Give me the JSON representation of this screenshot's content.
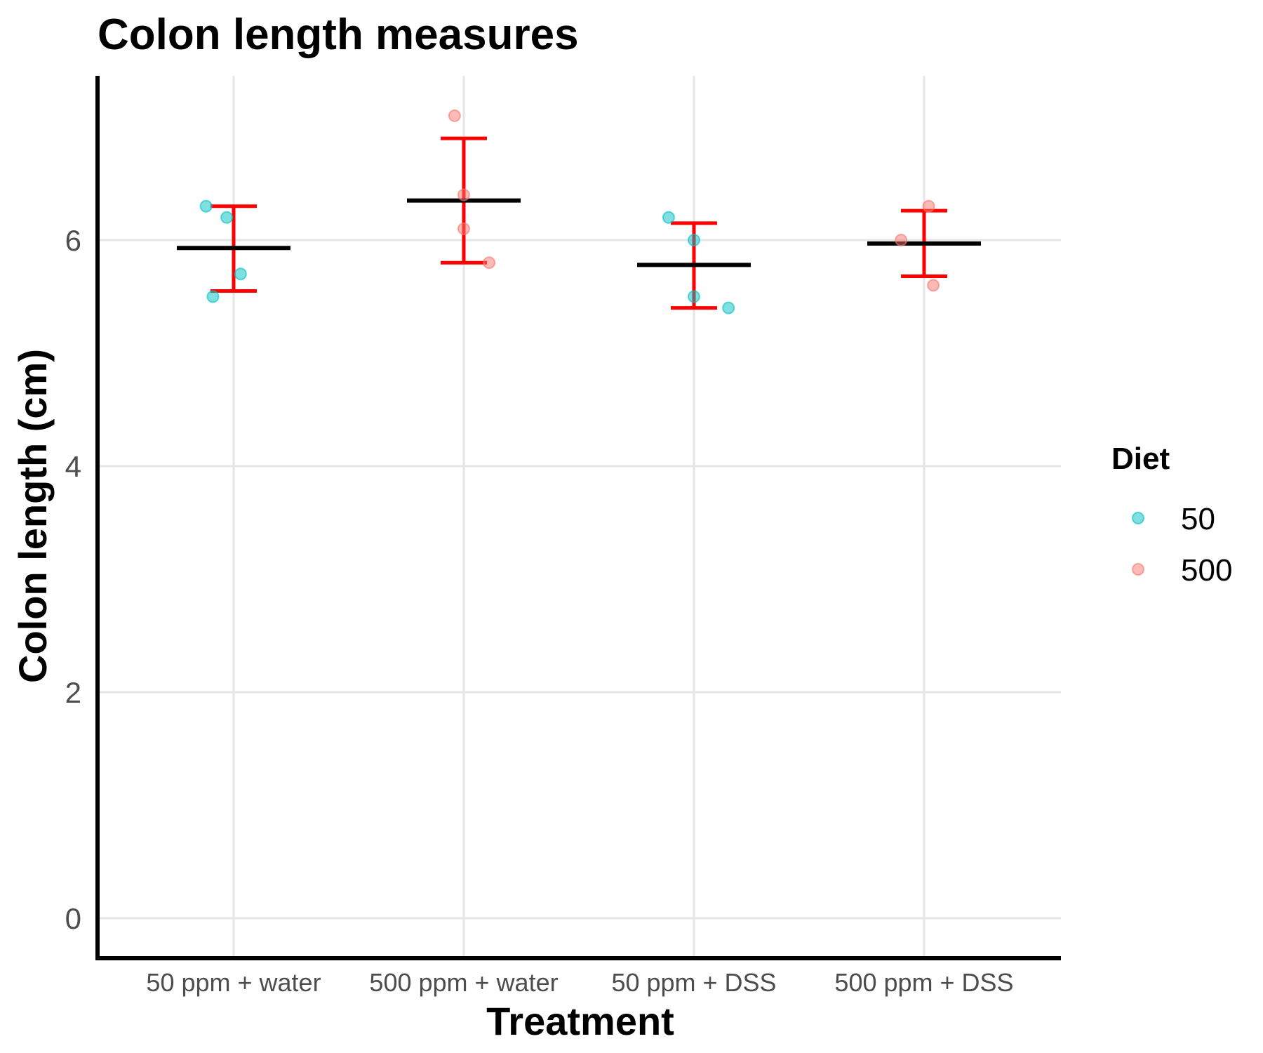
{
  "chart_data": {
    "type": "scatter",
    "title": "Colon length measures",
    "xlabel": "Treatment",
    "ylabel": "Colon length (cm)",
    "categories": [
      "50 ppm + water",
      "500 ppm + water",
      "50 ppm + DSS",
      "500 ppm + DSS"
    ],
    "ylim": [
      -0.35,
      7.4
    ],
    "yticks": [
      0,
      2,
      4,
      6
    ],
    "grid": true,
    "legend": {
      "title": "Diet",
      "placement": "right",
      "entries": [
        {
          "label": "50",
          "color": "#00BFC4"
        },
        {
          "label": "500",
          "color": "#F8766D"
        }
      ]
    },
    "points": [
      {
        "category": 0,
        "jitter": -0.12,
        "y": 6.3,
        "diet": "50"
      },
      {
        "category": 0,
        "jitter": -0.03,
        "y": 6.2,
        "diet": "50"
      },
      {
        "category": 0,
        "jitter": 0.03,
        "y": 5.7,
        "diet": "50"
      },
      {
        "category": 0,
        "jitter": -0.09,
        "y": 5.5,
        "diet": "50"
      },
      {
        "category": 1,
        "jitter": -0.04,
        "y": 7.1,
        "diet": "500"
      },
      {
        "category": 1,
        "jitter": 0.0,
        "y": 6.4,
        "diet": "500"
      },
      {
        "category": 1,
        "jitter": 0.0,
        "y": 6.1,
        "diet": "500"
      },
      {
        "category": 1,
        "jitter": 0.11,
        "y": 5.8,
        "diet": "500"
      },
      {
        "category": 2,
        "jitter": -0.11,
        "y": 6.2,
        "diet": "50"
      },
      {
        "category": 2,
        "jitter": 0.0,
        "y": 6.0,
        "diet": "50"
      },
      {
        "category": 2,
        "jitter": 0.0,
        "y": 5.5,
        "diet": "50"
      },
      {
        "category": 2,
        "jitter": 0.15,
        "y": 5.4,
        "diet": "50"
      },
      {
        "category": 3,
        "jitter": 0.02,
        "y": 6.3,
        "diet": "500"
      },
      {
        "category": 3,
        "jitter": -0.1,
        "y": 6.0,
        "diet": "500"
      },
      {
        "category": 3,
        "jitter": 0.04,
        "y": 5.6,
        "diet": "500"
      }
    ],
    "summary": [
      {
        "category": 0,
        "mean": 5.93,
        "lower": 5.55,
        "upper": 6.3
      },
      {
        "category": 1,
        "mean": 6.35,
        "lower": 5.8,
        "upper": 6.9
      },
      {
        "category": 2,
        "mean": 5.78,
        "lower": 5.4,
        "upper": 6.15
      },
      {
        "category": 3,
        "mean": 5.97,
        "lower": 5.68,
        "upper": 6.26
      }
    ],
    "mean_color": "#000000",
    "errorbar_color": "#FF0000"
  }
}
